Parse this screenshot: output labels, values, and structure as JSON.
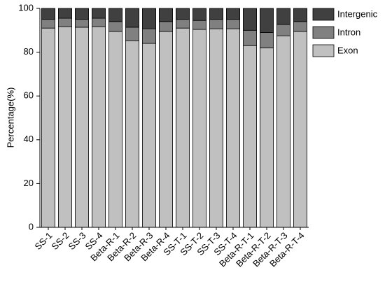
{
  "chart_data": {
    "type": "stacked_bar",
    "y_label": "Percentage(%)",
    "categories": [
      "SS-1",
      "SS-2",
      "SS-3",
      "SS-4",
      "Beta-R-1",
      "Beta-R-2",
      "Beta-R-3",
      "Beta-R-4",
      "SS-T-1",
      "SS-T-2",
      "SS-T-3",
      "SS-T-4",
      "Beta-R-T-1",
      "Beta-R-T-2",
      "Beta-R-T-3",
      "Beta-R-T-4"
    ],
    "series": [
      {
        "name": "Exon",
        "color": "#c0c0c0",
        "values": [
          91,
          91.7,
          91.4,
          91.7,
          89.5,
          85.3,
          84,
          89.5,
          91,
          90.4,
          90.7,
          90.7,
          83,
          82,
          87.5,
          89.5
        ]
      },
      {
        "name": "Intron",
        "color": "#808080",
        "values": [
          4,
          3.8,
          3.6,
          3.8,
          4.5,
          6.1,
          6.7,
          4.5,
          4,
          4.1,
          4.3,
          4.3,
          7,
          7,
          5.2,
          4.5
        ]
      },
      {
        "name": "Intergenic",
        "color": "#404040",
        "values": [
          5,
          4.5,
          5,
          4.5,
          6,
          8.6,
          9.3,
          6,
          5,
          5.5,
          5,
          5,
          10,
          11,
          7.3,
          6
        ]
      }
    ],
    "ylim": [
      0,
      100
    ],
    "yticks": [
      0,
      20,
      40,
      60,
      80,
      100
    ],
    "legend": "top-right"
  }
}
